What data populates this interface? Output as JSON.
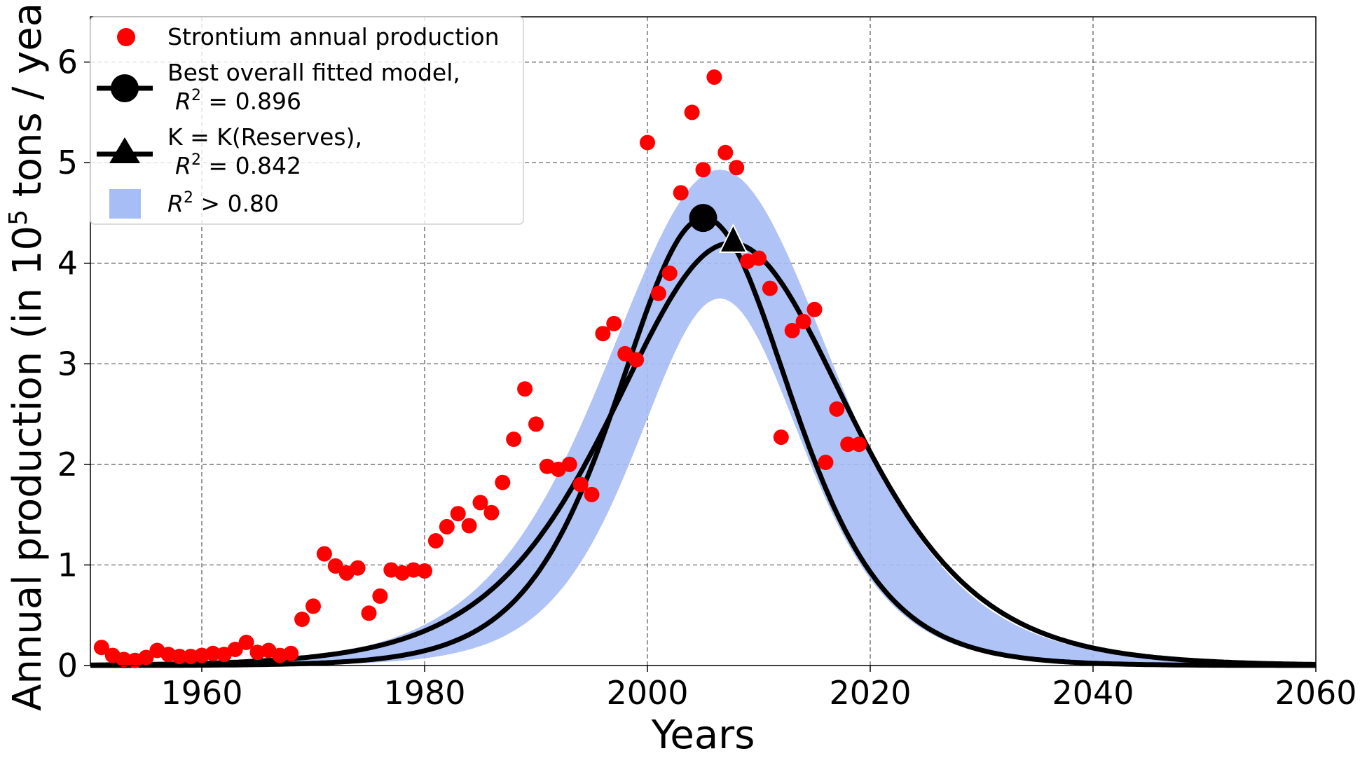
{
  "chart_data": {
    "type": "line",
    "xlabel": "Years",
    "ylabel_parts": {
      "before": "Annual production (in 10",
      "superscript": "5",
      "after": " tons / year)"
    },
    "xlim": [
      1950,
      2060
    ],
    "ylim": [
      0,
      6.45
    ],
    "xticks": [
      1960,
      1980,
      2000,
      2020,
      2040,
      2060
    ],
    "yticks": [
      0,
      1,
      2,
      3,
      4,
      5,
      6
    ],
    "grid": true,
    "legend_position": "upper-left",
    "colors": {
      "points": "#ff0000",
      "curves": "#000000",
      "band": "#a6bdf5"
    },
    "scatter": {
      "name": "Strontium annual production",
      "x": [
        1951,
        1952,
        1953,
        1954,
        1955,
        1956,
        1957,
        1958,
        1959,
        1960,
        1961,
        1962,
        1963,
        1964,
        1965,
        1966,
        1967,
        1968,
        1969,
        1970,
        1971,
        1972,
        1973,
        1974,
        1975,
        1976,
        1977,
        1978,
        1979,
        1980,
        1981,
        1982,
        1983,
        1984,
        1985,
        1986,
        1987,
        1988,
        1989,
        1990,
        1991,
        1992,
        1993,
        1994,
        1995,
        1996,
        1997,
        1998,
        1999,
        2000,
        2001,
        2002,
        2003,
        2004,
        2005,
        2006,
        2007,
        2008,
        2009,
        2010,
        2011,
        2012,
        2013,
        2014,
        2015,
        2016,
        2017,
        2018,
        2019
      ],
      "y": [
        0.18,
        0.1,
        0.06,
        0.05,
        0.08,
        0.15,
        0.11,
        0.09,
        0.09,
        0.1,
        0.12,
        0.11,
        0.16,
        0.23,
        0.13,
        0.15,
        0.1,
        0.12,
        0.46,
        0.59,
        1.11,
        0.99,
        0.92,
        0.97,
        0.52,
        0.69,
        0.95,
        0.92,
        0.95,
        0.94,
        1.24,
        1.38,
        1.51,
        1.39,
        1.62,
        1.52,
        1.82,
        2.25,
        2.75,
        2.4,
        1.98,
        1.95,
        2.0,
        1.8,
        1.7,
        3.3,
        3.4,
        3.1,
        3.04,
        5.2,
        3.7,
        3.9,
        4.7,
        5.5,
        4.93,
        5.85,
        5.1,
        4.95,
        4.02,
        4.05,
        3.75,
        2.27,
        3.33,
        3.42,
        3.54,
        2.02,
        2.55,
        2.2,
        2.2
      ]
    },
    "series": [
      {
        "name_lines": [
          "Best overall fitted model,",
          "R2_0.896"
        ],
        "peak_year": 2005.1,
        "peak_value": 4.45,
        "width": 10.5,
        "marker": "circle",
        "marker_x": 2005,
        "marker_y": 4.45
      },
      {
        "name_lines": [
          "K = K(Reserves),",
          "R2_0.842"
        ],
        "peak_year": 2007.5,
        "peak_value": 4.2,
        "width": 14.3,
        "marker": "triangle",
        "marker_x": 2007.7,
        "marker_y": 4.2
      }
    ],
    "band": {
      "name": "R2 > 0.80",
      "peak_year": 2006.5,
      "upper_peak": 4.93,
      "lower_peak": 3.65,
      "upper_width": 13.8,
      "lower_width": 10.0
    },
    "legend": {
      "points_label": "Strontium annual production",
      "best_label_line1": "Best overall fitted model,",
      "best_r2_value": " = 0.896",
      "reserves_label_line1": "K = K(Reserves),",
      "reserves_r2_value": " = 0.842",
      "band_r2_relation": " > 0.80",
      "r2_symbol": "R",
      "r2_superscript": "2"
    }
  }
}
